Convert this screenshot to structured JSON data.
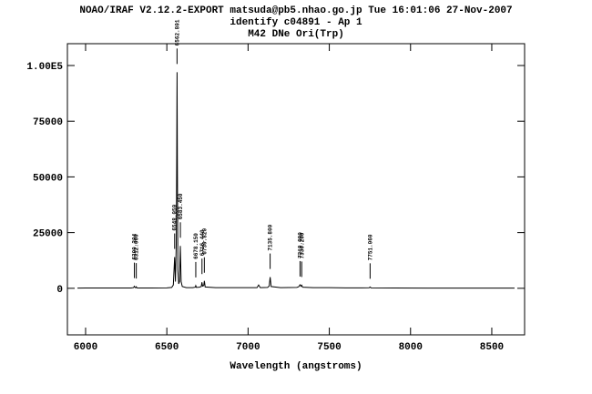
{
  "chart_data": {
    "type": "line",
    "title": "NOAO/IRAF V2.12.2-EXPORT matsuda@pb5.nhao.go.jp Tue 16:01:06 27-Nov-2007",
    "subtitle": "identify c04891 - Ap 1",
    "object": "M42 DNe Ori(Trp)",
    "x_label": "Wavelength (angstroms)",
    "xlim": [
      5888,
      8702
    ],
    "ylim": [
      -20900,
      109800
    ],
    "xticks": [
      6000,
      6500,
      7000,
      7500,
      8000,
      8500
    ],
    "yticks": [
      0,
      25000,
      50000,
      75000,
      {
        "value": 100000,
        "label": "1.00E5"
      }
    ],
    "color": "#000000",
    "x": [
      5950,
      6000,
      6100,
      6200,
      6280,
      6295,
      6300,
      6305,
      6308,
      6312,
      6316,
      6330,
      6400,
      6500,
      6530,
      6540,
      6548,
      6553,
      6558,
      6561,
      6563,
      6565,
      6568,
      6573,
      6578,
      6583,
      6588,
      6595,
      6620,
      6660,
      6675,
      6678,
      6682,
      6700,
      6712,
      6716,
      6720,
      6727,
      6731,
      6736,
      6800,
      6900,
      7000,
      7055,
      7065,
      7075,
      7120,
      7130,
      7136,
      7142,
      7200,
      7300,
      7312,
      7320,
      7326,
      7330,
      7336,
      7400,
      7500,
      7600,
      7700,
      7745,
      7751,
      7757,
      7900,
      8100,
      8300,
      8500,
      8640
    ],
    "values": [
      100,
      120,
      130,
      140,
      150,
      300,
      900,
      300,
      250,
      700,
      200,
      150,
      150,
      200,
      400,
      1500,
      14000,
      3000,
      20000,
      60000,
      97000,
      55000,
      8000,
      2000,
      3000,
      19000,
      3000,
      800,
      300,
      300,
      500,
      1200,
      400,
      500,
      800,
      2700,
      1000,
      1200,
      3300,
      600,
      300,
      300,
      300,
      300,
      1500,
      300,
      400,
      1000,
      5000,
      800,
      300,
      400,
      700,
      1600,
      900,
      1400,
      500,
      300,
      300,
      200,
      200,
      250,
      600,
      200,
      150,
      100,
      100,
      100,
      100
    ],
    "line_ids": [
      {
        "value": 6300.304,
        "label": "6300.304"
      },
      {
        "value": 6312.06,
        "label": "6312.060"
      },
      {
        "value": 6548.05,
        "label": "6548.050"
      },
      {
        "value": 6562.801,
        "label": "6562.801"
      },
      {
        "value": 6583.45,
        "label": "6583.450"
      },
      {
        "value": 6678.15,
        "label": "6678.150"
      },
      {
        "value": 6716.44,
        "label": "6716.440"
      },
      {
        "value": 6730.82,
        "label": "6730.820"
      },
      {
        "value": 7135.8,
        "label": "7135.800"
      },
      {
        "value": 7319.99,
        "label": "7319.990"
      },
      {
        "value": 7330.2,
        "label": "7330.200"
      },
      {
        "value": 7751.06,
        "label": "7751.060"
      }
    ]
  }
}
